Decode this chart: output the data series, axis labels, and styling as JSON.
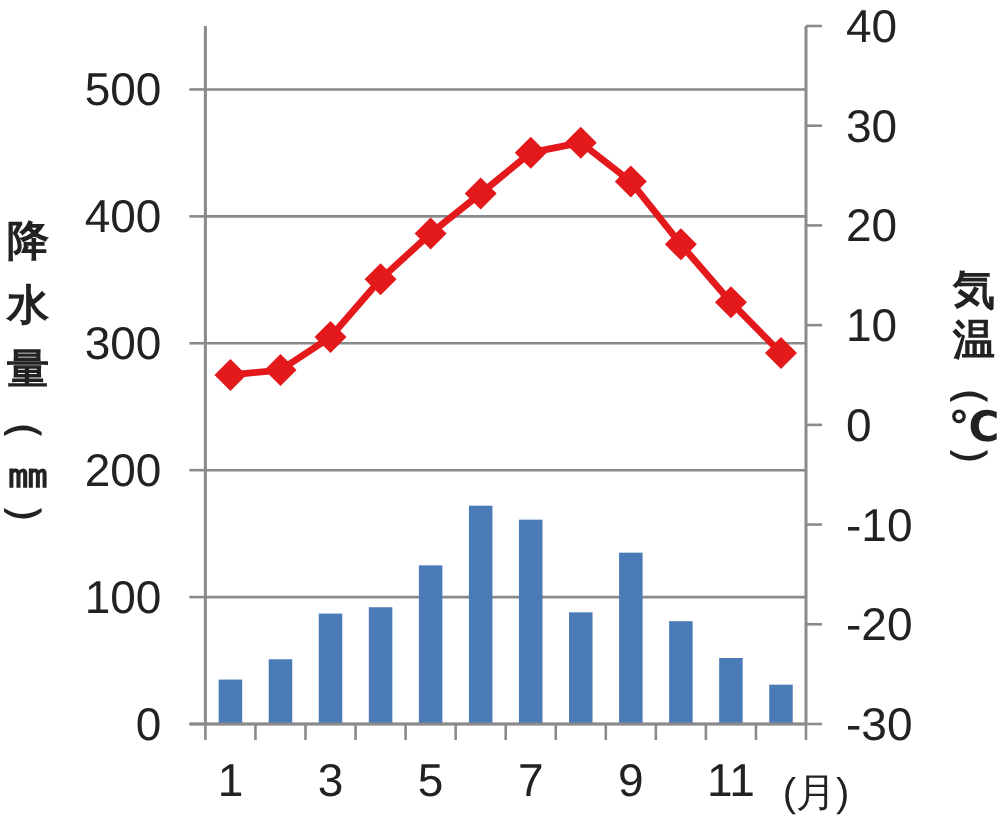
{
  "chart_data": {
    "type": "bar",
    "xlabel": "(月)",
    "ylabel": "降水量（㎜）",
    "y2label": "気温（℃）",
    "categories": [
      "1",
      null,
      "3",
      null,
      "5",
      null,
      "7",
      null,
      "9",
      null,
      "11",
      null
    ],
    "series": [
      {
        "type": "bar",
        "color": "#4a7bb7",
        "values": [
          35,
          51,
          87,
          92,
          125,
          172,
          161,
          88,
          135,
          81,
          52,
          31
        ]
      },
      {
        "type": "line",
        "axis": "y2",
        "color": "#e3191c",
        "marker": "diamond",
        "values": [
          5.0,
          5.5,
          8.8,
          14.6,
          19.2,
          23.2,
          27.3,
          28.3,
          24.4,
          18.1,
          12.3,
          7.2
        ]
      }
    ],
    "ylim": [
      0,
      550
    ],
    "yticks": [
      0,
      100,
      200,
      300,
      400,
      500
    ],
    "y2lim": [
      -30,
      40
    ],
    "y2ticks": [
      -30,
      -20,
      -10,
      0,
      10,
      20,
      30,
      40
    ],
    "grid": "y"
  }
}
